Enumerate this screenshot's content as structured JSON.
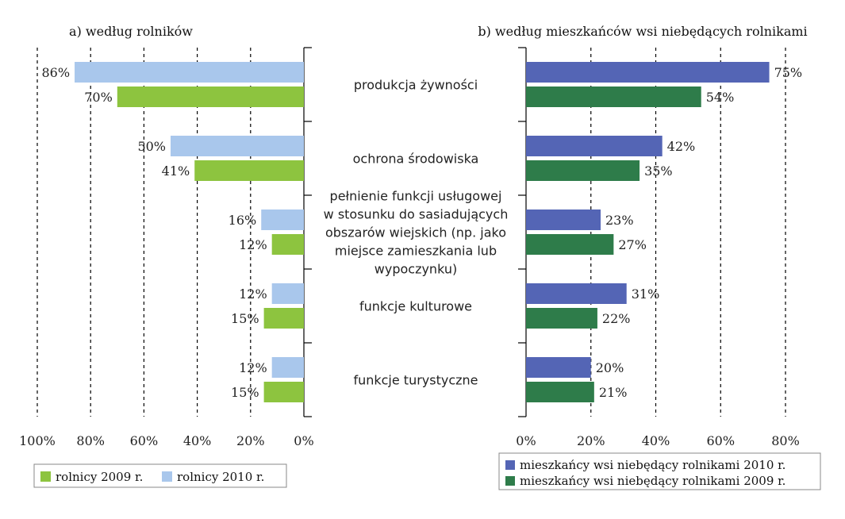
{
  "colors": {
    "farmers_2010": "#a9c7ec",
    "farmers_2009": "#8dc43f",
    "residents_2010": "#5465b5",
    "residents_2009": "#2e7c4a"
  },
  "chart_data": [
    {
      "type": "bar",
      "orientation": "horizontal",
      "direction": "reversed",
      "title": "a) według rolników",
      "categories": [
        "produkcja żywności",
        "ochrona środowiska",
        "pełnienie funkcji usługowej w stosunku do sasiadujących obszarów wiejskich (np. jako miejsce zamieszkania lub wypoczynku)",
        "funkcje kulturowe",
        "funkcje turystyczne"
      ],
      "series": [
        {
          "name": "rolnicy 2010 r.",
          "values": [
            86,
            50,
            16,
            12,
            12
          ],
          "labels": [
            "86%",
            "50%",
            "16%",
            "12%",
            "12%"
          ]
        },
        {
          "name": "rolnicy 2009 r.",
          "values": [
            70,
            41,
            12,
            15,
            15
          ],
          "labels": [
            "70%",
            "41%",
            "12%",
            "15%",
            "15%"
          ]
        }
      ],
      "xlim": [
        0,
        100
      ],
      "ticks": [
        100,
        80,
        60,
        40,
        20,
        0
      ],
      "tick_labels": [
        "100%",
        "80%",
        "60%",
        "40%",
        "20%",
        "0%"
      ],
      "grid": true,
      "legend": [
        "rolnicy 2009 r.",
        "rolnicy 2010 r."
      ],
      "legend_position": "bottom"
    },
    {
      "type": "bar",
      "orientation": "horizontal",
      "title": "b) według mieszkańców wsi niebędących rolnikami",
      "categories": [
        "produkcja żywności",
        "ochrona środowiska",
        "pełnienie funkcji usługowej w stosunku do sasiadujących obszarów wiejskich (np. jako miejsce zamieszkania lub wypoczynku)",
        "funkcje kulturowe",
        "funkcje turystyczne"
      ],
      "series": [
        {
          "name": "mieszkańcy wsi niebędący rolnikami 2010 r.",
          "values": [
            75,
            42,
            23,
            31,
            20
          ],
          "labels": [
            "75%",
            "42%",
            "23%",
            "31%",
            "20%"
          ]
        },
        {
          "name": "mieszkańcy wsi niebędący rolnikami 2009 r.",
          "values": [
            54,
            35,
            27,
            22,
            21
          ],
          "labels": [
            "54%",
            "35%",
            "27%",
            "22%",
            "21%"
          ]
        }
      ],
      "xlim": [
        0,
        80
      ],
      "ticks": [
        0,
        20,
        40,
        60,
        80
      ],
      "tick_labels": [
        "0%",
        "20%",
        "40%",
        "60%",
        "80%"
      ],
      "grid": true,
      "legend": [
        "mieszkańcy wsi niebędący rolnikami 2010 r.",
        "mieszkańcy wsi niebędący rolnikami 2009 r."
      ],
      "legend_position": "bottom"
    }
  ],
  "category_lines": [
    [
      "produkcja żywności"
    ],
    [
      "ochrona środowiska"
    ],
    [
      "pełnienie funkcji usługowej",
      "w stosunku do sasiadujących",
      "obszarów wiejskich (np. jako",
      "miejsce zamieszkania lub",
      "wypoczynku)"
    ],
    [
      "funkcje kulturowe"
    ],
    [
      "funkcje turystyczne"
    ]
  ]
}
